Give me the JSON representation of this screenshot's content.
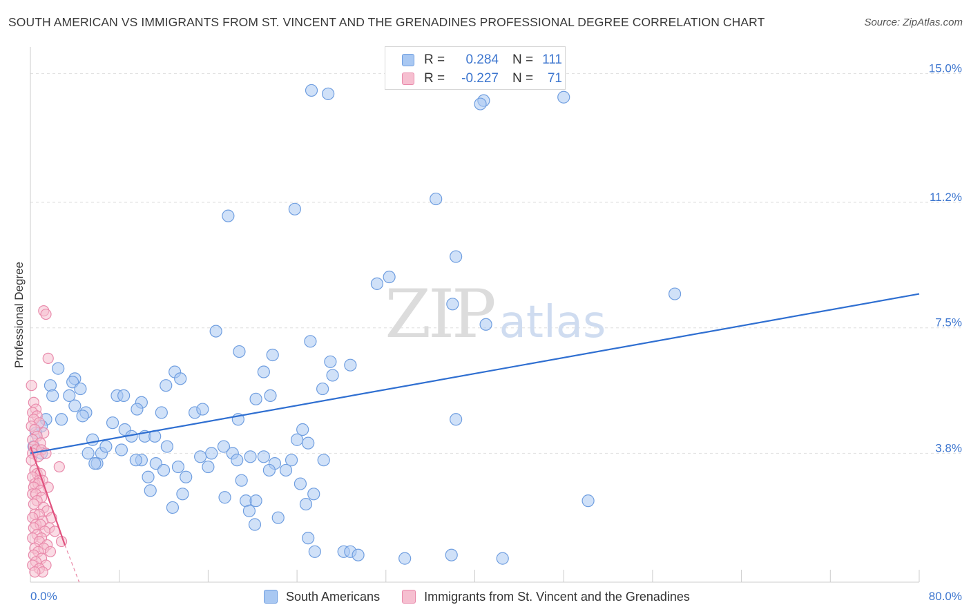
{
  "title": "SOUTH AMERICAN VS IMMIGRANTS FROM ST. VINCENT AND THE GRENADINES PROFESSIONAL DEGREE CORRELATION CHART",
  "source": "Source: ZipAtlas.com",
  "watermark": {
    "zip": "ZIP",
    "atlas": "atlas"
  },
  "stats": [
    {
      "r_key": "R =",
      "r": "0.284",
      "n_key": "N =",
      "n": "111",
      "color": "#a9c8f2",
      "border": "#6f9ee0"
    },
    {
      "r_key": "R =",
      "r": "-0.227",
      "n_key": "N =",
      "n": "71",
      "color": "#f6bfd0",
      "border": "#e98aab"
    }
  ],
  "legend": [
    {
      "label": "South Americans",
      "color": "#a9c8f2",
      "border": "#6f9ee0"
    },
    {
      "label": "Immigrants from St. Vincent and the Grenadines",
      "color": "#f6bfd0",
      "border": "#e98aab"
    }
  ],
  "chart_data": {
    "type": "scatter",
    "xlabel": "",
    "ylabel": "Professional Degree",
    "xlim": [
      0,
      80
    ],
    "ylim": [
      0,
      15.7
    ],
    "x_tick_labels": [
      {
        "value": 0,
        "label": "0.0%"
      },
      {
        "value": 80,
        "label": "80.0%"
      }
    ],
    "y_tick_labels": [
      {
        "value": 3.8,
        "label": "3.8%"
      },
      {
        "value": 7.5,
        "label": "7.5%"
      },
      {
        "value": 11.2,
        "label": "11.2%"
      },
      {
        "value": 15.0,
        "label": "15.0%"
      }
    ],
    "grid": "horizontal dashed",
    "legend_position": "bottom",
    "series": [
      {
        "name": "South Americans",
        "color": "#a9c8f2",
        "stroke": "#6f9ee0",
        "trend": {
          "x": [
            0,
            80
          ],
          "y": [
            3.8,
            8.5
          ],
          "color": "#2f6fd1"
        },
        "points": [
          [
            25.3,
            14.5
          ],
          [
            26.8,
            14.4
          ],
          [
            40.8,
            14.2
          ],
          [
            40.5,
            14.1
          ],
          [
            48.0,
            14.3
          ],
          [
            23.8,
            11.0
          ],
          [
            17.8,
            10.8
          ],
          [
            36.5,
            11.3
          ],
          [
            38.3,
            9.6
          ],
          [
            32.3,
            9.0
          ],
          [
            31.2,
            8.8
          ],
          [
            38.0,
            8.2
          ],
          [
            58.0,
            8.5
          ],
          [
            41.0,
            7.6
          ],
          [
            16.7,
            7.4
          ],
          [
            25.2,
            7.1
          ],
          [
            18.8,
            6.8
          ],
          [
            21.8,
            6.7
          ],
          [
            27.0,
            6.5
          ],
          [
            28.8,
            6.4
          ],
          [
            2.5,
            6.3
          ],
          [
            13.0,
            6.2
          ],
          [
            21.0,
            6.2
          ],
          [
            27.2,
            6.1
          ],
          [
            4.0,
            6.0
          ],
          [
            3.8,
            5.9
          ],
          [
            12.2,
            5.8
          ],
          [
            13.5,
            6.0
          ],
          [
            1.8,
            5.8
          ],
          [
            26.3,
            5.7
          ],
          [
            21.6,
            5.5
          ],
          [
            20.3,
            5.4
          ],
          [
            2.0,
            5.5
          ],
          [
            4.5,
            5.7
          ],
          [
            7.8,
            5.5
          ],
          [
            8.4,
            5.5
          ],
          [
            3.5,
            5.5
          ],
          [
            4.0,
            5.2
          ],
          [
            10.0,
            5.3
          ],
          [
            9.6,
            5.1
          ],
          [
            14.8,
            5.0
          ],
          [
            5.0,
            5.0
          ],
          [
            11.8,
            5.0
          ],
          [
            15.5,
            5.1
          ],
          [
            1.4,
            4.8
          ],
          [
            2.8,
            4.8
          ],
          [
            4.7,
            4.9
          ],
          [
            7.4,
            4.7
          ],
          [
            18.7,
            4.8
          ],
          [
            38.3,
            4.8
          ],
          [
            1.0,
            4.6
          ],
          [
            0.5,
            4.4
          ],
          [
            8.5,
            4.5
          ],
          [
            10.3,
            4.3
          ],
          [
            5.6,
            4.2
          ],
          [
            9.1,
            4.3
          ],
          [
            11.2,
            4.3
          ],
          [
            0.3,
            4.0
          ],
          [
            24.5,
            4.5
          ],
          [
            24.0,
            4.2
          ],
          [
            25.0,
            4.1
          ],
          [
            12.3,
            4.0
          ],
          [
            1.0,
            3.8
          ],
          [
            5.2,
            3.8
          ],
          [
            6.4,
            3.8
          ],
          [
            6.8,
            4.0
          ],
          [
            17.4,
            4.0
          ],
          [
            18.2,
            3.8
          ],
          [
            19.8,
            3.7
          ],
          [
            8.2,
            3.9
          ],
          [
            15.3,
            3.7
          ],
          [
            16.3,
            3.8
          ],
          [
            18.6,
            3.6
          ],
          [
            21.0,
            3.7
          ],
          [
            22.0,
            3.5
          ],
          [
            23.5,
            3.6
          ],
          [
            26.4,
            3.6
          ],
          [
            10.0,
            3.6
          ],
          [
            11.3,
            3.5
          ],
          [
            6.0,
            3.5
          ],
          [
            9.5,
            3.6
          ],
          [
            16.0,
            3.4
          ],
          [
            5.8,
            3.5
          ],
          [
            12.0,
            3.3
          ],
          [
            13.3,
            3.4
          ],
          [
            10.6,
            3.1
          ],
          [
            14.0,
            3.1
          ],
          [
            21.5,
            3.3
          ],
          [
            23.0,
            3.3
          ],
          [
            19.0,
            3.0
          ],
          [
            24.3,
            2.9
          ],
          [
            25.5,
            2.6
          ],
          [
            10.8,
            2.7
          ],
          [
            13.7,
            2.6
          ],
          [
            17.5,
            2.5
          ],
          [
            19.4,
            2.4
          ],
          [
            20.3,
            2.4
          ],
          [
            12.8,
            2.2
          ],
          [
            50.2,
            2.4
          ],
          [
            24.8,
            2.3
          ],
          [
            19.7,
            2.1
          ],
          [
            22.3,
            1.9
          ],
          [
            20.2,
            1.7
          ],
          [
            25.0,
            1.3
          ],
          [
            28.2,
            0.9
          ],
          [
            28.8,
            0.9
          ],
          [
            37.9,
            0.8
          ],
          [
            25.6,
            0.9
          ],
          [
            42.5,
            0.7
          ],
          [
            33.7,
            0.7
          ],
          [
            29.5,
            0.8
          ]
        ]
      },
      {
        "name": "Immigrants from St. Vincent and the Grenadines",
        "color": "#f6bfd0",
        "stroke": "#e98aab",
        "trend": {
          "x": [
            0,
            3.1
          ],
          "y": [
            4.0,
            1.1
          ],
          "color": "#e0527e"
        },
        "trend_extension": {
          "x": [
            3.1,
            5.8
          ],
          "y": [
            1.1,
            -1.2
          ]
        },
        "points": [
          [
            1.2,
            8.0
          ],
          [
            1.4,
            7.9
          ],
          [
            1.6,
            6.6
          ],
          [
            0.1,
            5.8
          ],
          [
            0.3,
            5.3
          ],
          [
            0.5,
            5.1
          ],
          [
            0.2,
            5.0
          ],
          [
            0.6,
            4.9
          ],
          [
            0.3,
            4.8
          ],
          [
            0.8,
            4.7
          ],
          [
            0.1,
            4.6
          ],
          [
            0.4,
            4.5
          ],
          [
            1.2,
            4.4
          ],
          [
            0.6,
            4.3
          ],
          [
            0.2,
            4.2
          ],
          [
            0.9,
            4.1
          ],
          [
            0.3,
            4.0
          ],
          [
            0.5,
            3.9
          ],
          [
            1.0,
            3.9
          ],
          [
            0.2,
            3.8
          ],
          [
            0.7,
            3.7
          ],
          [
            1.4,
            3.8
          ],
          [
            0.1,
            3.6
          ],
          [
            2.6,
            3.4
          ],
          [
            0.4,
            3.3
          ],
          [
            0.6,
            3.2
          ],
          [
            0.9,
            3.2
          ],
          [
            0.2,
            3.1
          ],
          [
            0.8,
            3.0
          ],
          [
            1.1,
            3.0
          ],
          [
            0.4,
            2.9
          ],
          [
            0.7,
            2.9
          ],
          [
            1.6,
            2.8
          ],
          [
            0.3,
            2.8
          ],
          [
            0.9,
            2.7
          ],
          [
            0.2,
            2.6
          ],
          [
            0.5,
            2.6
          ],
          [
            1.0,
            2.5
          ],
          [
            0.6,
            2.4
          ],
          [
            0.3,
            2.3
          ],
          [
            1.2,
            2.2
          ],
          [
            1.5,
            2.1
          ],
          [
            0.4,
            2.0
          ],
          [
            0.8,
            2.0
          ],
          [
            0.2,
            1.9
          ],
          [
            1.9,
            1.9
          ],
          [
            1.1,
            1.8
          ],
          [
            0.5,
            1.7
          ],
          [
            0.9,
            1.7
          ],
          [
            1.7,
            1.6
          ],
          [
            0.3,
            1.6
          ],
          [
            1.3,
            1.5
          ],
          [
            2.2,
            1.5
          ],
          [
            0.6,
            1.4
          ],
          [
            1.0,
            1.3
          ],
          [
            0.2,
            1.3
          ],
          [
            2.8,
            1.2
          ],
          [
            0.8,
            1.2
          ],
          [
            1.5,
            1.1
          ],
          [
            0.4,
            1.0
          ],
          [
            1.2,
            1.0
          ],
          [
            0.7,
            0.9
          ],
          [
            1.8,
            0.9
          ],
          [
            0.3,
            0.8
          ],
          [
            1.0,
            0.7
          ],
          [
            0.5,
            0.6
          ],
          [
            1.4,
            0.5
          ],
          [
            0.2,
            0.5
          ],
          [
            0.8,
            0.4
          ],
          [
            1.1,
            0.3
          ],
          [
            0.4,
            0.3
          ]
        ]
      }
    ]
  }
}
